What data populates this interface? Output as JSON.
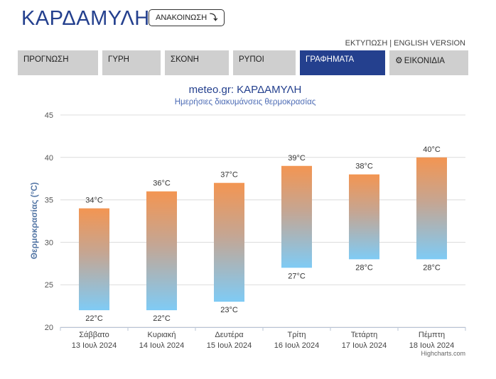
{
  "header": {
    "title": "ΚΑΡΔΑΜΥΛΗ",
    "announce_label": "ΑΝΑΚΟΙΝΩΣΗ",
    "announce_icon": "arrow-down-icon"
  },
  "top_links": {
    "print": "ΕΚΤΥΠΩΣΗ",
    "separator": "|",
    "english": "ENGLISH VERSION"
  },
  "tabs": [
    {
      "label": "ΠΡΟΓΝΩΣΗ",
      "active": false
    },
    {
      "label": "ΓΥΡΗ",
      "active": false
    },
    {
      "label": "ΣΚΟΝΗ",
      "active": false
    },
    {
      "label": "ΡΥΠΟΙ",
      "active": false
    },
    {
      "label": "ΓΡΑΦΗΜΑΤΑ",
      "active": true
    },
    {
      "label": "ΕΙΚΟΝΙΔΙΑ",
      "active": false,
      "icon": "gear-icon"
    }
  ],
  "colors": {
    "brand": "#24408e",
    "bar_top": "#f39552",
    "bar_bottom": "#7fcbf5",
    "tab_inactive": "#cfcfcf"
  },
  "chart_data": {
    "type": "bar",
    "subtype": "columnrange",
    "title": "meteo.gr: ΚΑΡΔΑΜΥΛΗ",
    "subtitle": "Ημερήσιες διακυμάνσεις θερμοκρασίας",
    "ylabel": "Θερμοκρασίας (°C)",
    "xlabel": "",
    "ylim": [
      20,
      45
    ],
    "yticks": [
      20,
      25,
      30,
      35,
      40,
      45
    ],
    "grid": true,
    "unit": "°C",
    "categories": [
      {
        "day": "Σάββατο",
        "date": "13 Ιουλ 2024"
      },
      {
        "day": "Κυριακή",
        "date": "14 Ιουλ 2024"
      },
      {
        "day": "Δευτέρα",
        "date": "15 Ιουλ 2024"
      },
      {
        "day": "Τρίτη",
        "date": "16 Ιουλ 2024"
      },
      {
        "day": "Τετάρτη",
        "date": "17 Ιουλ 2024"
      },
      {
        "day": "Πέμπτη",
        "date": "18 Ιουλ 2024"
      }
    ],
    "series": [
      {
        "low": [
          22,
          22,
          23,
          27,
          28,
          28
        ],
        "high": [
          34,
          36,
          37,
          39,
          38,
          40
        ]
      }
    ],
    "credit": "Highcharts.com"
  }
}
